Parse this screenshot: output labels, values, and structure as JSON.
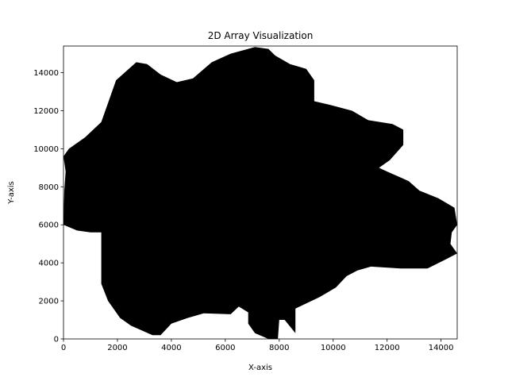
{
  "chart_data": {
    "type": "heatmap",
    "title": "2D Array Visualization",
    "xlabel": "X-axis",
    "ylabel": "Y-axis",
    "xlim": [
      0,
      14600
    ],
    "ylim": [
      0,
      15400
    ],
    "x_ticks": [
      0,
      2000,
      4000,
      6000,
      8000,
      10000,
      12000,
      14000
    ],
    "y_ticks": [
      0,
      2000,
      4000,
      6000,
      8000,
      10000,
      12000,
      14000
    ],
    "grid": false,
    "colormap": "gray",
    "fill_color": "#000000",
    "background_color": "#ffffff",
    "mask_outline": [
      [
        0,
        6300
      ],
      [
        30,
        7800
      ],
      [
        80,
        8800
      ],
      [
        0,
        9600
      ],
      [
        200,
        10000
      ],
      [
        800,
        10600
      ],
      [
        1400,
        11400
      ],
      [
        1950,
        13600
      ],
      [
        2700,
        14550
      ],
      [
        3100,
        14450
      ],
      [
        3600,
        13900
      ],
      [
        4200,
        13500
      ],
      [
        4800,
        13700
      ],
      [
        5500,
        14550
      ],
      [
        6200,
        15000
      ],
      [
        7100,
        15350
      ],
      [
        7600,
        15250
      ],
      [
        7850,
        14900
      ],
      [
        8400,
        14450
      ],
      [
        9000,
        14200
      ],
      [
        9300,
        13600
      ],
      [
        9300,
        12500
      ],
      [
        9900,
        12300
      ],
      [
        10700,
        12000
      ],
      [
        11300,
        11500
      ],
      [
        12200,
        11300
      ],
      [
        12600,
        11000
      ],
      [
        12600,
        10200
      ],
      [
        12100,
        9400
      ],
      [
        11700,
        9000
      ],
      [
        12000,
        8800
      ],
      [
        12800,
        8300
      ],
      [
        13200,
        7800
      ],
      [
        13900,
        7400
      ],
      [
        14500,
        6900
      ],
      [
        14600,
        6000
      ],
      [
        14400,
        5600
      ],
      [
        14350,
        5000
      ],
      [
        14600,
        4500
      ],
      [
        14200,
        4200
      ],
      [
        13500,
        3700
      ],
      [
        12500,
        3700
      ],
      [
        11400,
        3800
      ],
      [
        10900,
        3600
      ],
      [
        10500,
        3300
      ],
      [
        10100,
        2700
      ],
      [
        9500,
        2200
      ],
      [
        8900,
        1800
      ],
      [
        8600,
        1600
      ],
      [
        8600,
        300
      ],
      [
        8200,
        1000
      ],
      [
        8000,
        1000
      ],
      [
        7950,
        0
      ],
      [
        7600,
        0
      ],
      [
        7100,
        300
      ],
      [
        6850,
        800
      ],
      [
        6850,
        1400
      ],
      [
        6500,
        1700
      ],
      [
        6200,
        1300
      ],
      [
        5200,
        1350
      ],
      [
        4600,
        1100
      ],
      [
        4000,
        800
      ],
      [
        3600,
        200
      ],
      [
        3300,
        200
      ],
      [
        2500,
        700
      ],
      [
        2300,
        900
      ],
      [
        2100,
        1100
      ],
      [
        1650,
        2000
      ],
      [
        1400,
        2900
      ],
      [
        1400,
        5600
      ],
      [
        1000,
        5600
      ],
      [
        500,
        5700
      ],
      [
        0,
        6000
      ]
    ]
  }
}
